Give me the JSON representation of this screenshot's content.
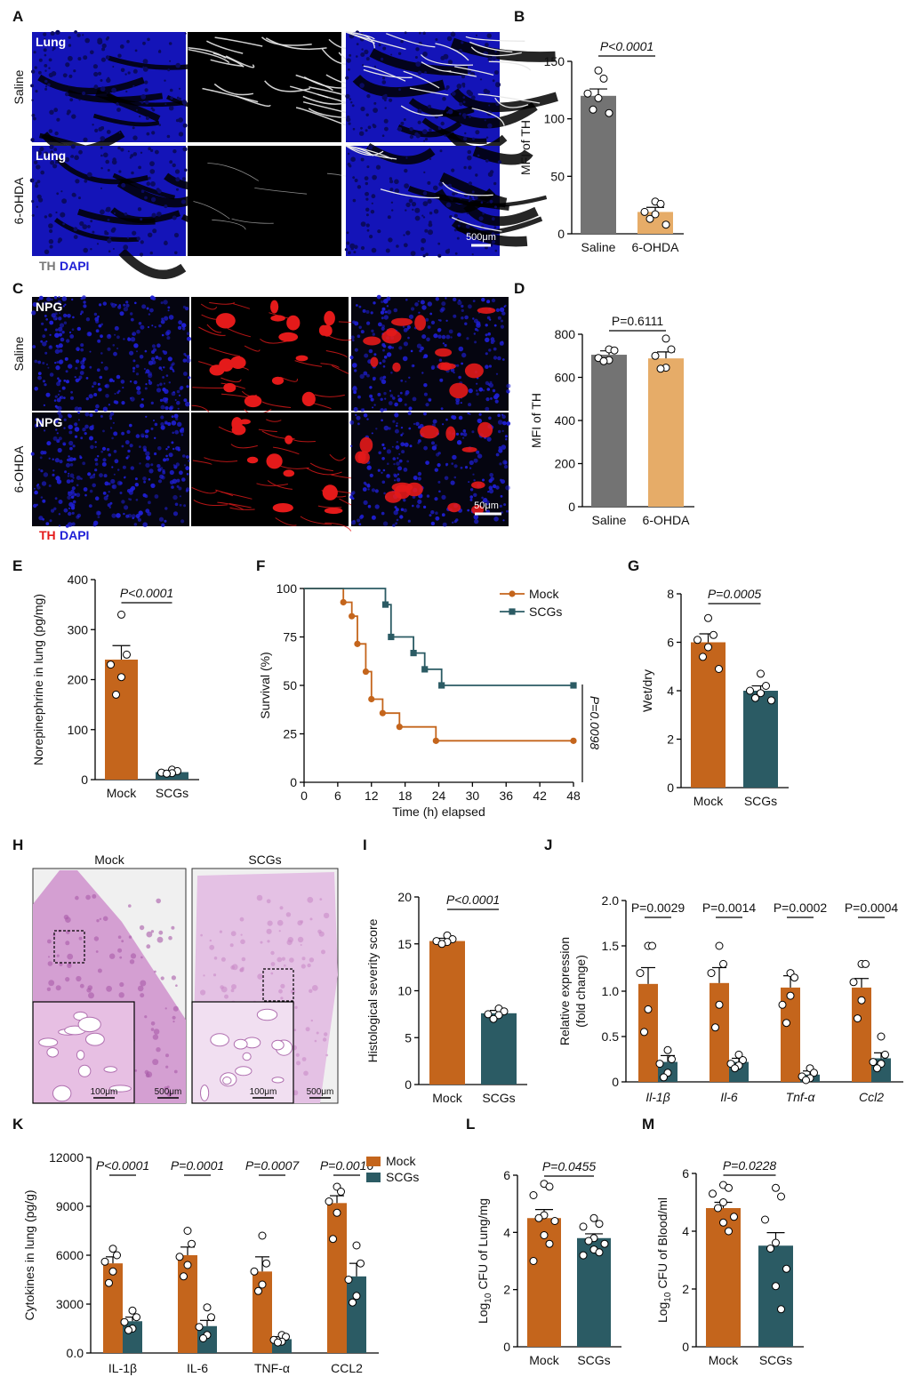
{
  "colors": {
    "mock": "#c4651c",
    "scgs": "#2b5b64",
    "saline": "#737373",
    "ohda": "#e6ac68",
    "blue": "#1f1fd6",
    "red": "#e41a1a",
    "he": "#d9a7d6"
  },
  "panel_letters": [
    "A",
    "B",
    "C",
    "D",
    "E",
    "F",
    "G",
    "H",
    "I",
    "J",
    "K",
    "L",
    "M"
  ],
  "panelA": {
    "row_labels": [
      "Saline",
      "6-OHDA"
    ],
    "tile_label": "Lung",
    "scalebar": "500μm",
    "legend": [
      "TH",
      "DAPI"
    ]
  },
  "panelC": {
    "row_labels": [
      "Saline",
      "6-OHDA"
    ],
    "tile_label": "NPG",
    "scalebar": "50μm",
    "legend": [
      "TH",
      "DAPI"
    ]
  },
  "panelH": {
    "titles": [
      "Mock",
      "SCGs"
    ],
    "inset_scale": "100μm",
    "main_scale": "500μm"
  },
  "chart_data": [
    {
      "panel": "B",
      "type": "bar",
      "categories": [
        "Saline",
        "6-OHDA"
      ],
      "values": [
        120,
        19
      ],
      "sem": [
        6,
        4
      ],
      "ylabel": "MFI of TH",
      "ylim": [
        0,
        150
      ],
      "yticks": [
        0,
        50,
        100,
        150
      ],
      "points": [
        [
          142,
          135,
          122,
          118,
          108,
          105
        ],
        [
          28,
          26,
          19,
          17,
          13,
          8
        ]
      ],
      "annotation": "P<0.0001",
      "italic_p": true
    },
    {
      "panel": "D",
      "type": "bar",
      "categories": [
        "Saline",
        "6-OHDA"
      ],
      "values": [
        705,
        688
      ],
      "sem": [
        18,
        30
      ],
      "ylabel": "MFI of TH",
      "ylim": [
        0,
        800
      ],
      "yticks": [
        0,
        200,
        400,
        600,
        800
      ],
      "points": [
        [
          730,
          725,
          690,
          680,
          675
        ],
        [
          780,
          730,
          700,
          645,
          640
        ]
      ],
      "annotation": "P=0.6111",
      "italic_p": false
    },
    {
      "panel": "E",
      "type": "bar",
      "categories": [
        "Mock",
        "SCGs"
      ],
      "values": [
        240,
        15
      ],
      "sem": [
        28,
        3
      ],
      "ylabel": "Norepinephrine in lung (pg/mg)",
      "ylim": [
        0,
        400
      ],
      "yticks": [
        0,
        100,
        200,
        300,
        400
      ],
      "points": [
        [
          330,
          250,
          230,
          205,
          170
        ],
        [
          20,
          17,
          14,
          13,
          12
        ]
      ],
      "annotation": "P<0.0001",
      "italic_p": true
    },
    {
      "panel": "F",
      "type": "line",
      "xlabel": "Time (h) elapsed",
      "ylabel": "Survival (%)",
      "xlim": [
        0,
        48
      ],
      "ylim": [
        0,
        100
      ],
      "xticks": [
        0,
        6,
        12,
        18,
        24,
        30,
        36,
        42,
        48
      ],
      "yticks": [
        0,
        25,
        50,
        75,
        100
      ],
      "series": [
        {
          "name": "Mock",
          "x": [
            0,
            7,
            8.5,
            9.5,
            11,
            12,
            14,
            17,
            23.5,
            48
          ],
          "y": [
            100,
            92.9,
            85.7,
            71.4,
            57.1,
            42.9,
            35.7,
            28.6,
            21.4,
            21.4
          ]
        },
        {
          "name": "SCGs",
          "x": [
            0,
            14.5,
            15.5,
            19.5,
            21.5,
            24.5,
            48
          ],
          "y": [
            100,
            91.7,
            75,
            66.7,
            58.3,
            50,
            50
          ]
        }
      ],
      "annotation": "P=0.0098"
    },
    {
      "panel": "G",
      "type": "bar",
      "categories": [
        "Mock",
        "SCGs"
      ],
      "values": [
        6.0,
        4.0
      ],
      "sem": [
        0.35,
        0.2
      ],
      "ylabel": "Wet/dry",
      "ylim": [
        0,
        8
      ],
      "yticks": [
        0,
        2,
        4,
        6,
        8
      ],
      "points": [
        [
          7.0,
          6.3,
          6.1,
          5.8,
          5.4,
          4.9
        ],
        [
          4.7,
          4.2,
          4.0,
          3.9,
          3.7,
          3.6
        ]
      ],
      "annotation": "P=0.0005",
      "italic_p": true
    },
    {
      "panel": "I",
      "type": "bar",
      "categories": [
        "Mock",
        "SCGs"
      ],
      "values": [
        15.3,
        7.6
      ],
      "sem": [
        0.3,
        0.3
      ],
      "ylabel": "Histological severity score",
      "ylim": [
        0,
        20
      ],
      "yticks": [
        0,
        5,
        10,
        15,
        20
      ],
      "points": [
        [
          15.9,
          15.5,
          15.3,
          15.2,
          15.0
        ],
        [
          8.1,
          7.8,
          7.5,
          7.4,
          7.0
        ]
      ],
      "annotation": "P<0.0001",
      "italic_p": true
    },
    {
      "panel": "J",
      "type": "bar",
      "categories": [
        "Il-1β",
        "Il-6",
        "Tnf-α",
        "Ccl2"
      ],
      "ylabel": "Relative expression",
      "ylabel2": "(fold change)",
      "ylim": [
        0,
        2.0
      ],
      "yticks": [
        "0",
        "0.5",
        "1.0",
        "1.5",
        "2.0"
      ],
      "italic_categories": true,
      "series": [
        {
          "name": "Mock",
          "values": [
            1.08,
            1.09,
            1.04,
            1.04
          ],
          "sem": [
            0.18,
            0.17,
            0.13,
            0.1
          ],
          "points": [
            [
              1.5,
              1.5,
              1.2,
              0.8,
              0.55
            ],
            [
              1.5,
              1.3,
              1.2,
              0.85,
              0.6
            ],
            [
              1.2,
              1.15,
              0.85,
              0.95,
              0.65
            ],
            [
              1.3,
              1.3,
              1.1,
              0.9,
              0.7
            ]
          ]
        },
        {
          "name": "SCGs",
          "values": [
            0.22,
            0.22,
            0.08,
            0.26
          ],
          "sem": [
            0.07,
            0.04,
            0.04,
            0.06
          ],
          "points": [
            [
              0.35,
              0.25,
              0.2,
              0.1,
              0.05
            ],
            [
              0.3,
              0.24,
              0.2,
              0.18,
              0.15
            ],
            [
              0.15,
              0.1,
              0.06,
              0.04,
              0.02
            ],
            [
              0.5,
              0.3,
              0.22,
              0.2,
              0.15
            ]
          ]
        }
      ],
      "annotations": [
        "P=0.0029",
        "P=0.0014",
        "P=0.0002",
        "P=0.0004"
      ],
      "italic_p": false
    },
    {
      "panel": "K",
      "type": "bar",
      "categories": [
        "IL-1β",
        "IL-6",
        "TNF-α",
        "CCL2"
      ],
      "ylabel": "Cytokines in lung (pg/g)",
      "ylim": [
        0,
        12000
      ],
      "yticks": [
        "0.0",
        "3000",
        "6000",
        "9000",
        "12000"
      ],
      "legend": [
        "Mock",
        "SCGs"
      ],
      "series": [
        {
          "name": "Mock",
          "values": [
            5500,
            6000,
            5000,
            9200
          ],
          "sem": [
            400,
            500,
            900,
            450
          ],
          "points": [
            [
              6400,
              6000,
              5600,
              5000,
              4300
            ],
            [
              7500,
              6700,
              5900,
              5400,
              4700
            ],
            [
              7200,
              5500,
              5000,
              4200,
              3800
            ],
            [
              10200,
              9900,
              9300,
              8600,
              7000
            ]
          ]
        },
        {
          "name": "SCGs",
          "values": [
            1950,
            1650,
            850,
            4700
          ],
          "sem": [
            250,
            350,
            150,
            800
          ],
          "points": [
            [
              2600,
              2200,
              1900,
              1500,
              1400
            ],
            [
              2800,
              2200,
              1600,
              1100,
              900
            ],
            [
              1100,
              1000,
              800,
              700,
              650
            ],
            [
              6600,
              5500,
              4500,
              3500,
              3100
            ]
          ]
        }
      ],
      "annotations": [
        "P<0.0001",
        "P=0.0001",
        "P=0.0007",
        "P=0.0016"
      ],
      "italic_p": true
    },
    {
      "panel": "L",
      "type": "bar",
      "categories": [
        "Mock",
        "SCGs"
      ],
      "values": [
        4.5,
        3.8
      ],
      "sem": [
        0.3,
        0.15
      ],
      "ylabel": "Log10 CFU of Lung/mg",
      "ylim": [
        0,
        6
      ],
      "yticks": [
        0,
        2,
        4,
        6
      ],
      "points": [
        [
          5.7,
          5.6,
          5.3,
          4.6,
          4.5,
          4.4,
          3.9,
          3.6,
          3.0
        ],
        [
          4.5,
          4.3,
          4.2,
          3.8,
          3.7,
          3.6,
          3.4,
          3.3,
          3.2
        ]
      ],
      "annotation": "P=0.0455",
      "italic_p": true
    },
    {
      "panel": "M",
      "type": "bar",
      "categories": [
        "Mock",
        "SCGs"
      ],
      "values": [
        4.8,
        3.5
      ],
      "sem": [
        0.2,
        0.45
      ],
      "ylabel": "Log10 CFU of Blood/ml",
      "ylim": [
        0,
        6
      ],
      "yticks": [
        0,
        2,
        4,
        6
      ],
      "points": [
        [
          5.6,
          5.5,
          5.3,
          5.0,
          4.8,
          4.5,
          4.3,
          4.0
        ],
        [
          5.5,
          5.2,
          4.4,
          3.6,
          3.4,
          2.7,
          2.1,
          1.3
        ]
      ],
      "annotation": "P=0.0228",
      "italic_p": true
    }
  ]
}
